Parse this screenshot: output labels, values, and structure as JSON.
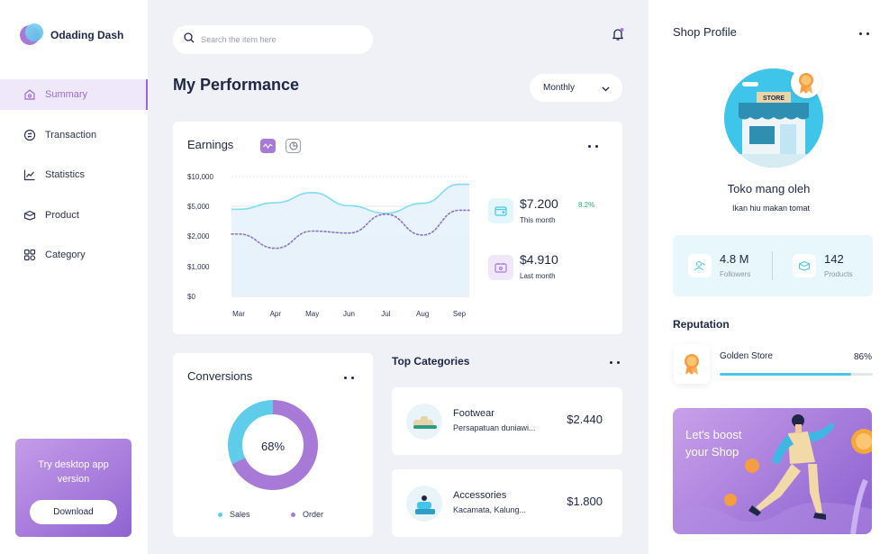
{
  "app": {
    "name": "Odading Dash"
  },
  "sidebar": {
    "items": [
      {
        "label": "Summary",
        "icon": "summary-icon",
        "active": true
      },
      {
        "label": "Transaction",
        "icon": "transaction-icon"
      },
      {
        "label": "Statistics",
        "icon": "statistics-icon"
      },
      {
        "label": "Product",
        "icon": "product-icon"
      },
      {
        "label": "Category",
        "icon": "category-icon"
      }
    ],
    "promo": {
      "text": "Try desktop app version",
      "button": "Download"
    }
  },
  "search": {
    "placeholder": "Search the item here",
    "value": ""
  },
  "header": {
    "title": "My Performance",
    "period": "Monthly"
  },
  "earnings": {
    "title": "Earnings",
    "this_month": {
      "value": "$7.200",
      "label": "This month",
      "change": "8.2%"
    },
    "last_month": {
      "value": "$4.910",
      "label": "Last month"
    }
  },
  "chart_data": {
    "type": "line",
    "categories": [
      "Mar",
      "Apr",
      "May",
      "Jun",
      "Jul",
      "Aug",
      "Sep"
    ],
    "y_ticks": [
      "$10,000",
      "$5,000",
      "$2,000",
      "$1,000",
      "$0"
    ],
    "series": [
      {
        "name": "",
        "values": [
          4700,
          5600,
          7300,
          5100,
          4300,
          5500,
          8700
        ],
        "style": "solid-area",
        "color": "#7fdcf3"
      },
      {
        "name": "",
        "values": [
          2200,
          1600,
          2500,
          2300,
          4200,
          2100,
          4600
        ],
        "style": "dotted",
        "color": "#8e73c6"
      }
    ],
    "ylim": [
      0,
      10000
    ]
  },
  "conversions": {
    "title": "Conversions",
    "center_label": "68%",
    "legend": [
      {
        "label": "Sales",
        "color": "#5fcde9"
      },
      {
        "label": "Order",
        "color": "#a77ad8"
      }
    ],
    "donut": {
      "sales": 32,
      "order": 68
    }
  },
  "top_categories": {
    "title": "Top Categories",
    "items": [
      {
        "name": "Footwear",
        "sub": "Persapatuan duniawi...",
        "price": "$2.440"
      },
      {
        "name": "Accessories",
        "sub": "Kacamata, Kalung...",
        "price": "$1.800"
      }
    ]
  },
  "shop": {
    "title": "Shop Profile",
    "store_sign": "STORE",
    "name": "Toko mang oleh",
    "desc": "Ikan hiu makan tomat",
    "followers": {
      "value": "4.8 M",
      "label": "Followers"
    },
    "products": {
      "value": "142",
      "label": "Products"
    }
  },
  "reputation": {
    "title": "Reputation",
    "name": "Golden Store",
    "pct_label": "86%",
    "pct": 86
  },
  "boost": {
    "text": "Let's boost your Shop"
  },
  "colors": {
    "accent": "#9a6ad4",
    "cyan": "#49c6ea",
    "bg": "#f0f1f7"
  }
}
